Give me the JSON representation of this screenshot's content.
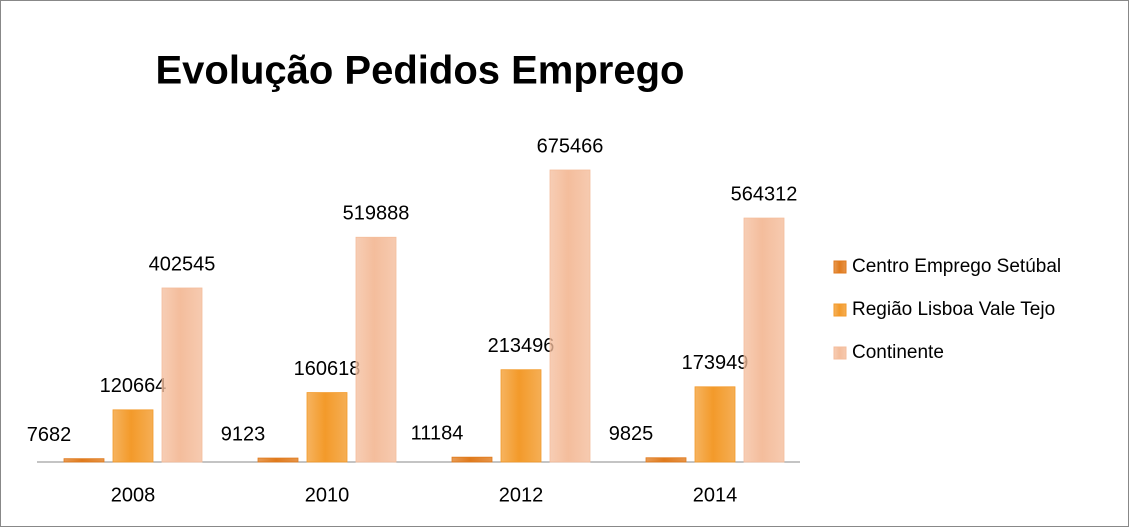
{
  "chart_data": {
    "type": "bar",
    "title": "Evolução Pedidos Emprego",
    "categories": [
      "2008",
      "2010",
      "2012",
      "2014"
    ],
    "series": [
      {
        "name": "Centro Emprego Setúbal",
        "color": "#e07a1c",
        "values": [
          7682,
          9123,
          11184,
          9825
        ]
      },
      {
        "name": "Região Lisboa Vale Tejo",
        "color": "#f39a2a",
        "values": [
          120664,
          160618,
          213496,
          173949
        ]
      },
      {
        "name": "Continente",
        "color": "#f4bd9c",
        "values": [
          402545,
          519888,
          675466,
          564312
        ]
      }
    ],
    "legend": "right"
  }
}
